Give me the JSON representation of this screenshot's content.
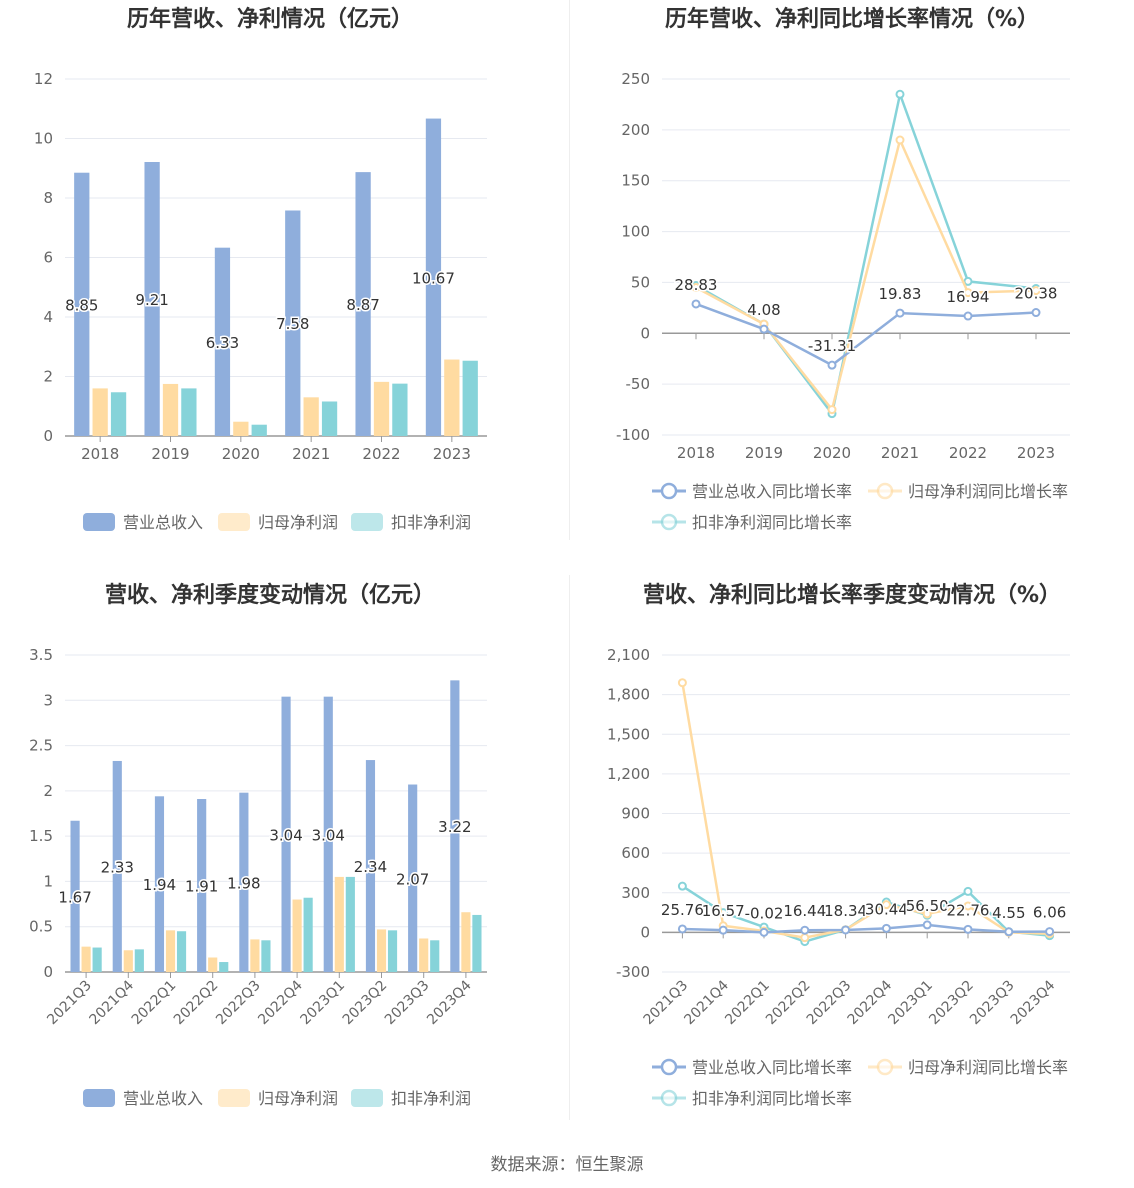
{
  "source": "数据来源：恒生聚源",
  "colors": {
    "revenue": "#8FAEDC",
    "parent_profit": "#FFDBA1",
    "deducted_profit": "#86D3D9",
    "axis": "#999999",
    "grid": "#e6e9f0",
    "title": "#333333",
    "tick": "#666666",
    "label": "#333333",
    "legend_text": "#666666"
  },
  "charts": [
    {
      "chart_data": {
        "type": "bar",
        "title": "历年营收、净利情况（亿元）",
        "categories": [
          "2018",
          "2019",
          "2020",
          "2021",
          "2022",
          "2023"
        ],
        "ylim": [
          0,
          12
        ],
        "yticks": [
          "0",
          "2",
          "4",
          "6",
          "8",
          "10",
          "12"
        ],
        "grid": true,
        "legend_position": "bottom",
        "series": [
          {
            "name": "营业总收入",
            "values": [
              8.85,
              9.21,
              6.33,
              7.58,
              8.87,
              10.67
            ],
            "labels": [
              "8.85",
              "9.21",
              "6.33",
              "7.58",
              "8.87",
              "10.67"
            ]
          },
          {
            "name": "归母净利润",
            "values": [
              1.6,
              1.75,
              0.48,
              1.3,
              1.82,
              2.57
            ]
          },
          {
            "name": "扣非净利润",
            "values": [
              1.47,
              1.6,
              0.38,
              1.16,
              1.76,
              2.53
            ]
          }
        ]
      }
    },
    {
      "chart_data": {
        "type": "line",
        "title": "历年营收、净利同比增长率情况（%）",
        "categories": [
          "2018",
          "2019",
          "2020",
          "2021",
          "2022",
          "2023"
        ],
        "ylim": [
          -100,
          250
        ],
        "yticks": [
          "-100",
          "-50",
          "0",
          "50",
          "100",
          "150",
          "200",
          "250"
        ],
        "grid": true,
        "legend_position": "bottom",
        "series": [
          {
            "name": "营业总收入同比增长率",
            "values": [
              28.83,
              4.08,
              -31.31,
              19.83,
              16.94,
              20.38
            ],
            "labels": [
              "28.83",
              "4.08",
              "-31.31",
              "19.83",
              "16.94",
              "20.38"
            ]
          },
          {
            "name": "归母净利润同比增长率",
            "values": [
              45,
              9,
              -75,
              190,
              40,
              42
            ]
          },
          {
            "name": "扣非净利润同比增长率",
            "values": [
              47,
              9,
              -79,
              235,
              51,
              44
            ]
          }
        ]
      }
    },
    {
      "chart_data": {
        "type": "bar",
        "title": "营收、净利季度变动情况（亿元）",
        "categories": [
          "2021Q3",
          "2021Q4",
          "2022Q1",
          "2022Q2",
          "2022Q3",
          "2022Q4",
          "2023Q1",
          "2023Q2",
          "2023Q3",
          "2023Q4"
        ],
        "ylim": [
          0,
          3.5
        ],
        "yticks": [
          "0",
          "0.5",
          "1",
          "1.5",
          "2",
          "2.5",
          "3",
          "3.5"
        ],
        "grid": true,
        "legend_position": "bottom",
        "series": [
          {
            "name": "营业总收入",
            "values": [
              1.67,
              2.33,
              1.94,
              1.91,
              1.98,
              3.04,
              3.04,
              2.34,
              2.07,
              3.22
            ],
            "labels": [
              "1.67",
              "2.33",
              "1.94",
              "1.91",
              "1.98",
              "3.04",
              "3.04",
              "2.34",
              "2.07",
              "3.22"
            ]
          },
          {
            "name": "归母净利润",
            "values": [
              0.28,
              0.24,
              0.46,
              0.16,
              0.36,
              0.8,
              1.05,
              0.47,
              0.37,
              0.66
            ]
          },
          {
            "name": "扣非净利润",
            "values": [
              0.27,
              0.25,
              0.45,
              0.11,
              0.35,
              0.82,
              1.05,
              0.46,
              0.35,
              0.63
            ]
          }
        ]
      }
    },
    {
      "chart_data": {
        "type": "line",
        "title": "营收、净利同比增长率季度变动情况（%）",
        "categories": [
          "2021Q3",
          "2021Q4",
          "2022Q1",
          "2022Q2",
          "2022Q3",
          "2022Q4",
          "2023Q1",
          "2023Q2",
          "2023Q3",
          "2023Q4"
        ],
        "ylim": [
          -300,
          2100
        ],
        "yticks": [
          "-300",
          "0",
          "300",
          "600",
          "900",
          "1,200",
          "1,500",
          "1,800",
          "2,100"
        ],
        "grid": true,
        "legend_position": "bottom",
        "series": [
          {
            "name": "营业总收入同比增长率",
            "values": [
              25.76,
              16.57,
              -0.02,
              16.44,
              18.34,
              30.44,
              56.5,
              22.76,
              4.55,
              6.06
            ],
            "labels": [
              "25.76",
              "16.57",
              "-0.02",
              "16.44",
              "18.34",
              "30.44",
              "56.50",
              "22.76",
              "4.55",
              "6.06"
            ]
          },
          {
            "name": "归母净利润同比增长率",
            "values": [
              1890,
              50,
              10,
              -40,
              20,
              210,
              140,
              200,
              0,
              -10
            ]
          },
          {
            "name": "扣非净利润同比增长率",
            "values": [
              350,
              150,
              40,
              -70,
              20,
              230,
              130,
              310,
              5,
              -25
            ]
          }
        ]
      }
    }
  ]
}
